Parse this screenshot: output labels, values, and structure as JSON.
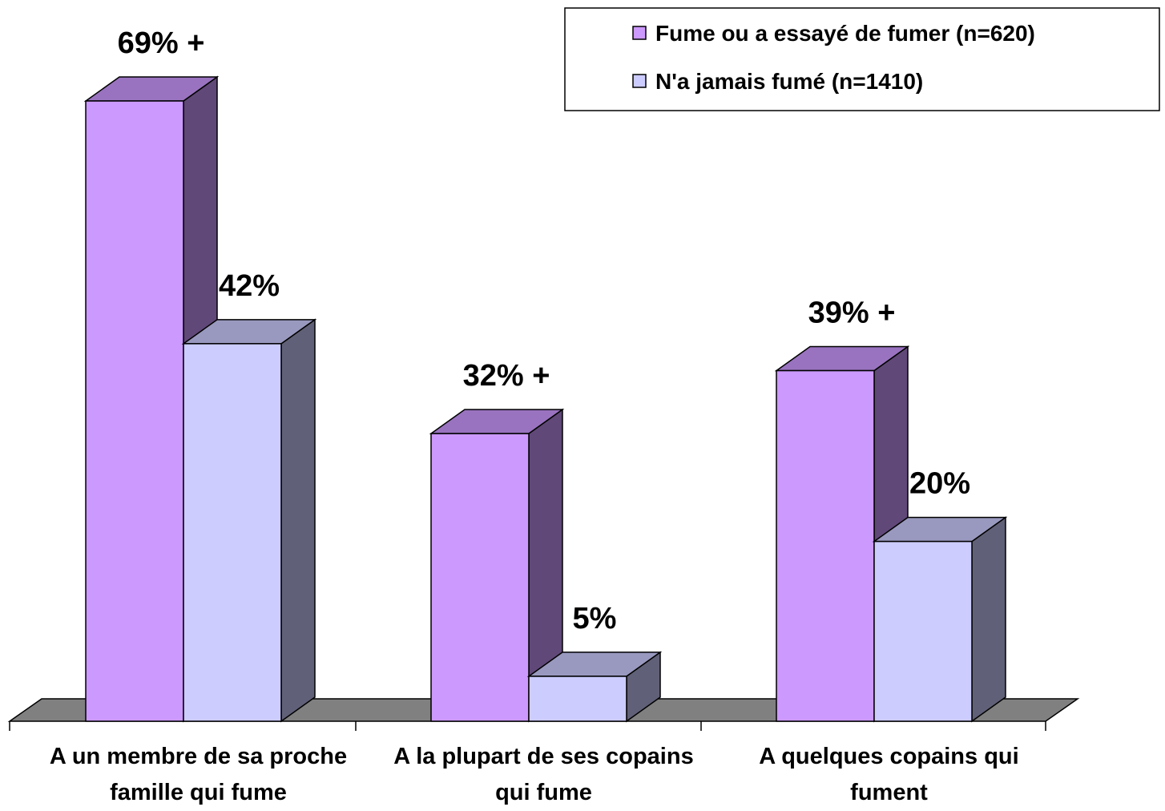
{
  "chart_data": {
    "type": "bar3d",
    "categories": [
      "A un membre de sa proche famille qui fume",
      "A la plupart de ses copains qui fume",
      "A quelques copains qui fument"
    ],
    "series": [
      {
        "name": "Fume ou a essayé de fumer (n=620)",
        "color": "#cc99ff",
        "values": [
          69,
          32,
          39
        ],
        "value_labels": [
          "69% +",
          "32% +",
          "39% +"
        ]
      },
      {
        "name": "N'a jamais fumé (n=1410)",
        "color": "#ccccff",
        "values": [
          42,
          5,
          20
        ],
        "value_labels": [
          "42%",
          "5%",
          "20%"
        ]
      }
    ],
    "legend": "top-right"
  }
}
